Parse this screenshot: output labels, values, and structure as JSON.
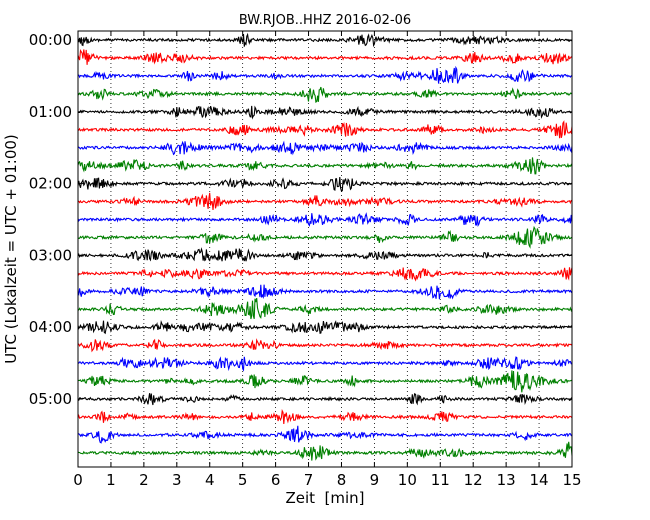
{
  "chart_data": {
    "type": "line",
    "title": "BW.RJOB..HHZ 2016-02-06",
    "xlabel": "Zeit  [min]",
    "ylabel": "UTC (Lokalzeit = UTC + 01:00)",
    "xlim": [
      0,
      15
    ],
    "x_ticks": [
      0,
      1,
      2,
      3,
      4,
      5,
      6,
      7,
      8,
      9,
      10,
      11,
      12,
      13,
      14,
      15
    ],
    "x_tick_labels": [
      "0",
      "1",
      "2",
      "3",
      "4",
      "5",
      "6",
      "7",
      "8",
      "9",
      "10",
      "11",
      "12",
      "13",
      "14",
      "15"
    ],
    "y_tick_labels": [
      "00:00",
      "01:00",
      "02:00",
      "03:00",
      "04:00",
      "05:00"
    ],
    "y_tick_rows": [
      0,
      4,
      8,
      12,
      16,
      20
    ],
    "trace_count": 24,
    "trace_minutes": 15,
    "trace_colors": [
      "#000000",
      "#ff0000",
      "#0000ff",
      "#008000"
    ],
    "grid": "vertical dotted at each minute"
  }
}
